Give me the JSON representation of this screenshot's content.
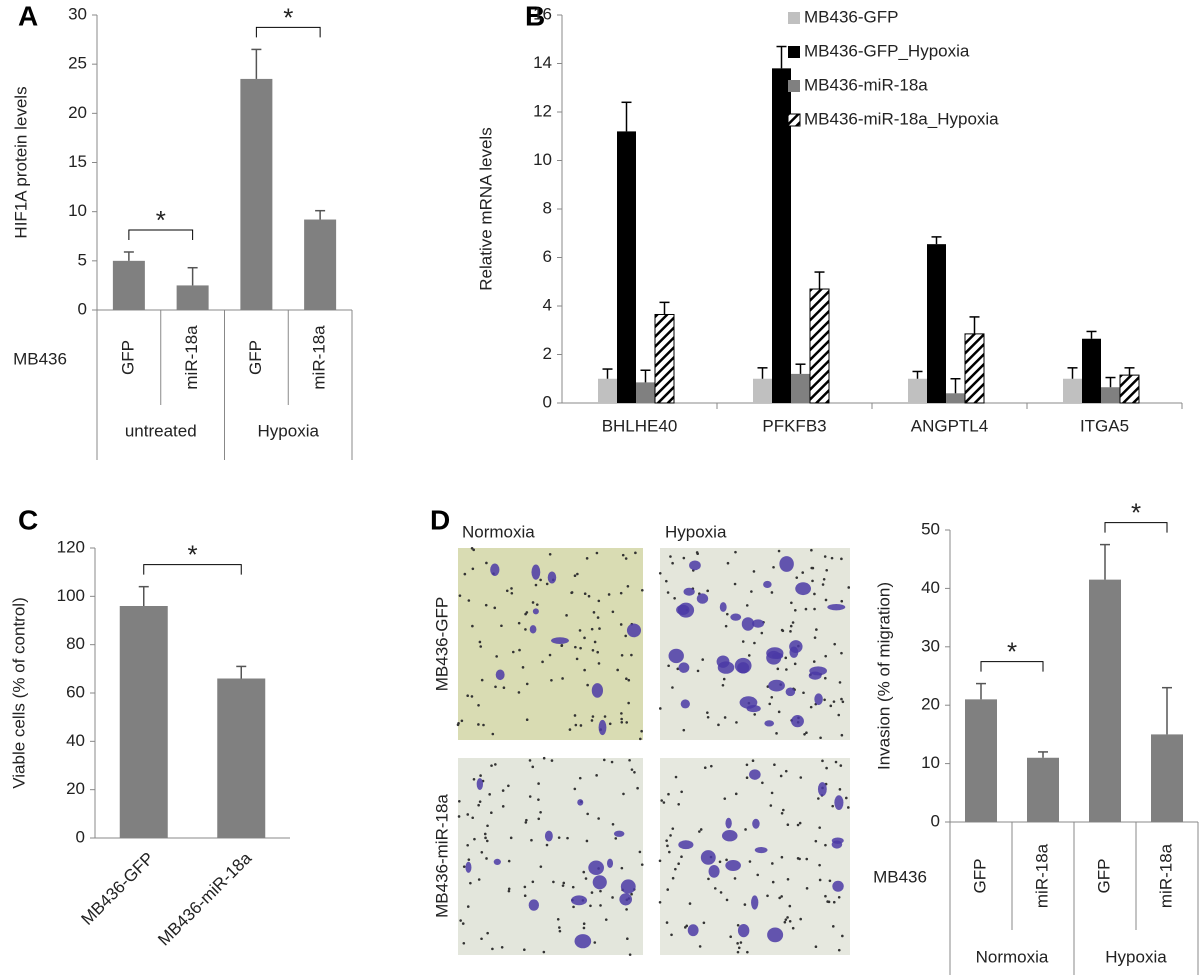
{
  "chart_data": [
    {
      "type": "bar",
      "panel": "A",
      "ylabel": "HIF1A protein  levels",
      "row_label": "MB436",
      "categories": [
        "GFP",
        "miR-18a",
        "GFP",
        "miR-18a"
      ],
      "groups": [
        "untreated",
        "Hypoxia"
      ],
      "values": [
        5.0,
        2.5,
        23.5,
        9.2
      ],
      "errors": [
        0.9,
        1.8,
        3.0,
        0.9
      ],
      "color": "#808080",
      "ylim": [
        0,
        30
      ],
      "yticks": [
        0,
        5,
        10,
        15,
        20,
        25,
        30
      ],
      "significance": [
        {
          "label": "*",
          "between": [
            0,
            1
          ]
        },
        {
          "label": "*",
          "between": [
            2,
            3
          ]
        }
      ]
    },
    {
      "type": "bar",
      "panel": "B",
      "ylabel": "Relative  mRNA levels",
      "legend": "upper right",
      "categories": [
        "BHLHE40",
        "PFKFB3",
        "ANGPTL4",
        "ITGA5"
      ],
      "series": [
        {
          "name": "MB436-GFP",
          "color": "#c0c0c0",
          "values": [
            1.0,
            1.0,
            1.0,
            1.0
          ],
          "errors": [
            0.4,
            0.45,
            0.3,
            0.45
          ]
        },
        {
          "name": "MB436-GFP_Hypoxia",
          "color": "#000000",
          "values": [
            11.2,
            13.8,
            6.55,
            2.65
          ],
          "errors": [
            1.2,
            0.9,
            0.3,
            0.3
          ]
        },
        {
          "name": "MB436-miR-18a",
          "color": "#808080",
          "values": [
            0.85,
            1.2,
            0.4,
            0.65
          ],
          "errors": [
            0.5,
            0.4,
            0.6,
            0.4
          ]
        },
        {
          "name": "MB436-miR-18a_Hypoxia",
          "color": "#000000",
          "hatch": true,
          "values": [
            3.65,
            4.7,
            2.85,
            1.15
          ],
          "errors": [
            0.5,
            0.7,
            0.7,
            0.3
          ]
        }
      ],
      "ylim": [
        0,
        16
      ],
      "yticks": [
        0,
        2,
        4,
        6,
        8,
        10,
        12,
        14,
        16
      ]
    },
    {
      "type": "bar",
      "panel": "C",
      "ylabel": "Viable cells (% of control)",
      "categories": [
        "MB436-GFP",
        "MB436-miR-18a"
      ],
      "values": [
        96,
        66
      ],
      "errors": [
        8,
        5
      ],
      "color": "#808080",
      "ylim": [
        0,
        120
      ],
      "yticks": [
        0,
        20,
        40,
        60,
        80,
        100,
        120
      ],
      "significance": [
        {
          "label": "*",
          "between": [
            0,
            1
          ]
        }
      ]
    },
    {
      "type": "bar",
      "ylabel": "Invasion  (% of migration)",
      "row_label": "MB436",
      "categories": [
        "GFP",
        "miR-18a",
        "GFP",
        "miR-18a"
      ],
      "groups": [
        "Normoxia",
        "Hypoxia"
      ],
      "values": [
        21,
        11,
        41.5,
        15
      ],
      "errors": [
        2.7,
        1.0,
        6.0,
        8.0
      ],
      "color": "#808080",
      "ylim": [
        0,
        50
      ],
      "yticks": [
        0,
        10,
        20,
        30,
        40,
        50
      ],
      "significance": [
        {
          "label": "*",
          "between": [
            0,
            1
          ]
        },
        {
          "label": "*",
          "between": [
            2,
            3
          ]
        }
      ]
    }
  ],
  "images": {
    "panel": "D",
    "columns": [
      "Normoxia",
      "Hypoxia"
    ],
    "rows": [
      "MB436-GFP",
      "MB436-miR-18a"
    ]
  }
}
